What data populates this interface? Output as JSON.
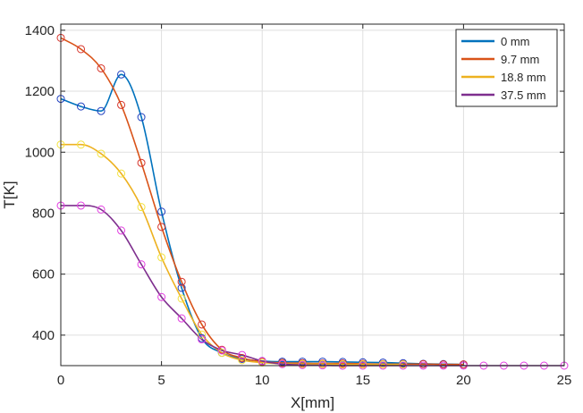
{
  "chart_data": {
    "type": "line",
    "xlabel": "X[mm]",
    "ylabel": "T[K]",
    "xlim": [
      0,
      25
    ],
    "ylim": [
      300,
      1420
    ],
    "xticks": [
      0,
      5,
      10,
      15,
      20,
      25
    ],
    "yticks": [
      400,
      600,
      800,
      1000,
      1200,
      1400
    ],
    "grid": true,
    "legend_position": "top-right",
    "series": [
      {
        "name": "0 mm",
        "color": "#0072BD",
        "marker_color": "#1f3fbf",
        "x": [
          0,
          1,
          2,
          3,
          4,
          5,
          6,
          7,
          8,
          9,
          10,
          11,
          12,
          13,
          14,
          15,
          16,
          17,
          18,
          19,
          20
        ],
        "values": [
          1175,
          1150,
          1135,
          1255,
          1115,
          805,
          555,
          390,
          342,
          322,
          315,
          313,
          313,
          313,
          312,
          311,
          310,
          308,
          306,
          305,
          304
        ]
      },
      {
        "name": "9.7 mm",
        "color": "#D95319",
        "marker_color": "#d6332a",
        "x": [
          0,
          1,
          2,
          3,
          4,
          5,
          6,
          7,
          8,
          9,
          10,
          11,
          12,
          13,
          14,
          15,
          16,
          17,
          18,
          19,
          20
        ],
        "values": [
          1375,
          1338,
          1275,
          1155,
          965,
          755,
          575,
          435,
          352,
          325,
          313,
          309,
          308,
          307,
          307,
          306,
          305,
          305,
          305,
          304,
          304
        ]
      },
      {
        "name": "18.8 mm",
        "color": "#EDB120",
        "marker_color": "#f2e23c",
        "x": [
          0,
          1,
          2,
          3,
          4,
          5,
          6,
          7,
          8,
          9,
          10,
          11,
          12,
          13,
          14,
          15,
          16,
          17
        ],
        "values": [
          1025,
          1025,
          995,
          930,
          820,
          655,
          520,
          402,
          342,
          318,
          310,
          306,
          305,
          305,
          304,
          304,
          304,
          304
        ]
      },
      {
        "name": "37.5 mm",
        "color": "#7E2F8E",
        "marker_color": "#e23ce0",
        "x": [
          0,
          1,
          2,
          3,
          4,
          5,
          6,
          7,
          8,
          9,
          10,
          11,
          12,
          13,
          14,
          15,
          16,
          17,
          18,
          19,
          20,
          21,
          22,
          23,
          24,
          25
        ],
        "values": [
          825,
          825,
          812,
          743,
          632,
          525,
          455,
          386,
          350,
          335,
          315,
          305,
          302,
          301,
          300,
          300,
          300,
          300,
          300,
          300,
          300,
          300,
          300,
          300,
          300,
          300
        ]
      }
    ]
  }
}
